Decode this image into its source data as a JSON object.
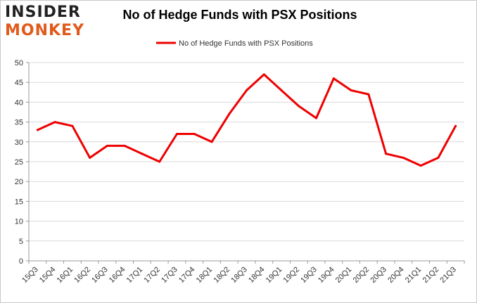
{
  "logo": {
    "line1": "INSIDER",
    "line2": "MONKEY",
    "colors": {
      "line1": "#222222",
      "line2": "#e05a1c"
    }
  },
  "chart_data": {
    "type": "line",
    "title": "No of Hedge Funds with PSX Positions",
    "xlabel": "",
    "ylabel": "",
    "categories": [
      "15Q3",
      "15Q4",
      "16Q1",
      "16Q2",
      "16Q3",
      "16Q4",
      "17Q1",
      "17Q2",
      "17Q3",
      "17Q4",
      "18Q1",
      "18Q2",
      "18Q3",
      "18Q4",
      "19Q1",
      "19Q2",
      "19Q3",
      "19Q4",
      "20Q1",
      "20Q2",
      "20Q3",
      "20Q4",
      "21Q1",
      "21Q2",
      "21Q3"
    ],
    "series": [
      {
        "name": "No of Hedge Funds with PSX Positions",
        "values": [
          33,
          35,
          34,
          26,
          29,
          29,
          27,
          25,
          32,
          32,
          30,
          37,
          43,
          47,
          43,
          39,
          36,
          46,
          43,
          42,
          27,
          26,
          24,
          26,
          34
        ],
        "color": "#ee0000"
      }
    ],
    "ylim": [
      0,
      50
    ],
    "yticks": [
      0,
      5,
      10,
      15,
      20,
      25,
      30,
      35,
      40,
      45,
      50
    ],
    "grid": true,
    "legend": "top-center"
  }
}
